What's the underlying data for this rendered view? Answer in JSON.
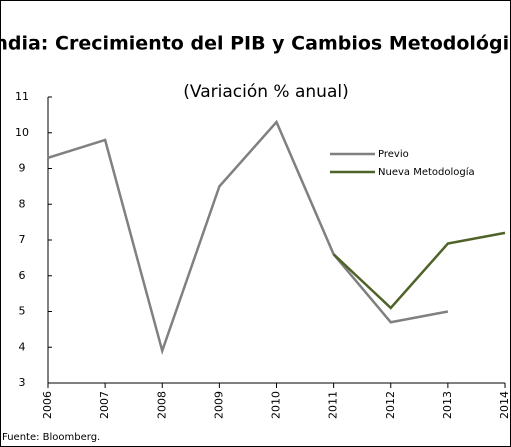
{
  "chart_data": {
    "type": "line",
    "title": "India: Crecimiento del PIB y Cambios Metodológicos",
    "subtitle": "(Variación % anual)",
    "source": "Fuente: Bloomberg.",
    "categories": [
      "2006",
      "2007",
      "2008",
      "2009",
      "2010",
      "2011",
      "2012",
      "2013",
      "2014"
    ],
    "series": [
      {
        "name": "Previo",
        "color": "#808080",
        "values": [
          9.3,
          9.8,
          3.9,
          8.5,
          10.3,
          6.6,
          4.7,
          5.0,
          null
        ]
      },
      {
        "name": "Nueva Metodología",
        "color": "#4f6228",
        "values": [
          null,
          null,
          null,
          null,
          null,
          6.6,
          5.1,
          6.9,
          7.2
        ]
      }
    ],
    "ylim": [
      3,
      11
    ],
    "yticks": [
      3,
      4,
      5,
      6,
      7,
      8,
      9,
      10,
      11
    ],
    "legend": "upper right"
  }
}
